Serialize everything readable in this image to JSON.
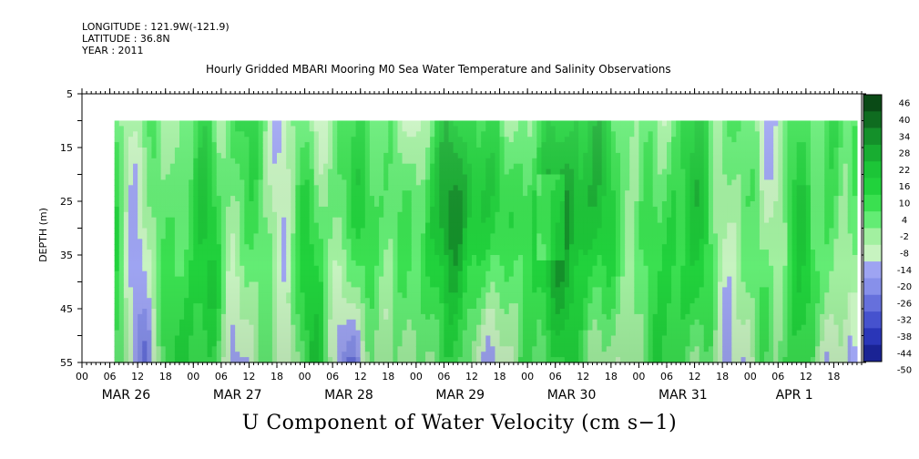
{
  "header": {
    "longitude": "LONGITUDE : 121.9W(-121.9)",
    "latitude": "LATITUDE : 36.8N",
    "year": "YEAR : 2011"
  },
  "chart_title": "Hourly Gridded MBARI Mooring M0 Sea Water Temperature and Salinity Observations",
  "bottom_title": "U Component of Water Velocity (cm s−1)",
  "chart_data": {
    "type": "heatmap",
    "title": "Hourly Gridded MBARI Mooring M0 Sea Water Temperature and Salinity Observations",
    "variable": "U Component of Water Velocity (cm s−1)",
    "ylabel": "DEPTH (m)",
    "y_ticks": [
      5,
      15,
      25,
      35,
      45,
      55
    ],
    "ylim": [
      55,
      5
    ],
    "x_hour_labels": [
      "00",
      "06",
      "12",
      "18",
      "00",
      "06",
      "12",
      "18",
      "00",
      "06",
      "12",
      "18",
      "00",
      "06",
      "12",
      "18",
      "00",
      "06",
      "12",
      "18",
      "00",
      "06",
      "12",
      "18",
      "00",
      "06",
      "12",
      "18"
    ],
    "x_day_labels": [
      "MAR 26",
      "MAR 27",
      "MAR 28",
      "MAR 29",
      "MAR 30",
      "MAR 31",
      "APR  1"
    ],
    "data_start": "2011-03-26 07:00",
    "data_end": "2011-04-01 23:00",
    "data_depth_range": [
      10,
      55
    ],
    "colorbar_levels": [
      46,
      40,
      34,
      28,
      22,
      16,
      10,
      4,
      -2,
      -8,
      -14,
      -20,
      -26,
      -32,
      -38,
      -44,
      -50
    ],
    "colors": {
      "strong_positive": "#0a4a16",
      "moderate_positive": "#21d23c",
      "weak_positive": "#a2f0a0",
      "weak_negative": "#9ea4f2",
      "strong_negative": "#0a0f6e"
    }
  }
}
